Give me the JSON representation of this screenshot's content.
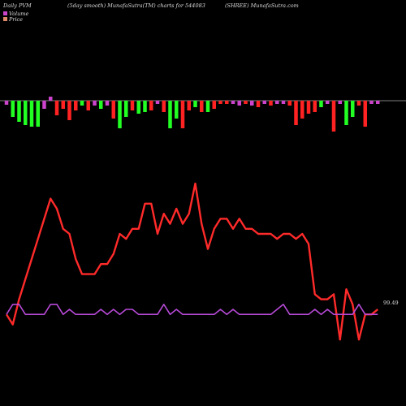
{
  "header": {
    "left": "Daily PVM",
    "center": "(5day smooth) MunafaSutra(TM) charts for 544083",
    "right": "(SHREE) MunafaSutra.com"
  },
  "legend": [
    {
      "label": "Volume",
      "color": "#cc44cc"
    },
    {
      "label": "Price",
      "color": "#e08a6a"
    }
  ],
  "end_label": "99.49",
  "colors": {
    "background": "#000000",
    "volume_up": "#ff2222",
    "volume_down": "#22ff22",
    "volume_neutral": "#cc44cc",
    "price_line": "#ff2a2a",
    "volume_line": "#b84ad8",
    "baseline": "#aaaaaa"
  },
  "chart_data": [
    {
      "type": "bar",
      "title": "",
      "series": [
        {
          "values": [
            -5,
            -20,
            -26,
            -30,
            -32,
            -32,
            -10,
            5,
            -18,
            -10,
            -24,
            -12,
            -6,
            -12,
            -6,
            -10,
            -6,
            -22,
            -34,
            -20,
            -12,
            -16,
            -14,
            -12,
            -4,
            -14,
            -34,
            -22,
            -34,
            -12,
            -8,
            -14,
            -14,
            -10,
            -4,
            -4,
            -4,
            -6,
            -4,
            -6,
            -8,
            -4,
            -6,
            -4,
            -4,
            -6,
            -30,
            -22,
            -16,
            -14,
            -8,
            -4,
            -38,
            -4,
            -30,
            -20,
            -6,
            -32,
            -4,
            -4
          ]
        }
      ],
      "bar_colors": [
        "m",
        "g",
        "g",
        "g",
        "g",
        "g",
        "m",
        "m",
        "r",
        "r",
        "r",
        "r",
        "g",
        "r",
        "m",
        "g",
        "m",
        "r",
        "g",
        "g",
        "r",
        "g",
        "g",
        "r",
        "m",
        "r",
        "g",
        "g",
        "r",
        "r",
        "g",
        "r",
        "g",
        "r",
        "r",
        "r",
        "m",
        "m",
        "r",
        "m",
        "r",
        "m",
        "r",
        "m",
        "m",
        "r",
        "r",
        "r",
        "r",
        "r",
        "g",
        "m",
        "r",
        "m",
        "g",
        "g",
        "r",
        "r",
        "m",
        "m"
      ]
    },
    {
      "type": "line",
      "title": "",
      "x": [
        0,
        1,
        2,
        3,
        4,
        5,
        6,
        7,
        8,
        9,
        10,
        11,
        12,
        13,
        14,
        15,
        16,
        17,
        18,
        19,
        20,
        21,
        22,
        23,
        24,
        25,
        26,
        27,
        28,
        29,
        30,
        31,
        32,
        33,
        34,
        35,
        36,
        37,
        38,
        39,
        40,
        41,
        42,
        43,
        44,
        45,
        46,
        47,
        48,
        49,
        50,
        51,
        52,
        53,
        54,
        55,
        56,
        57,
        58,
        59
      ],
      "series": [
        {
          "name": "Price",
          "values": [
            14,
            12,
            17,
            21,
            25,
            29,
            33,
            37,
            35,
            31,
            30,
            25,
            22,
            22,
            22,
            24,
            24,
            26,
            30,
            29,
            31,
            31,
            36,
            36,
            30,
            34,
            32,
            35,
            32,
            34,
            40,
            32,
            27,
            31,
            33,
            33,
            31,
            33,
            31,
            31,
            30,
            30,
            30,
            29,
            30,
            30,
            29,
            30,
            28,
            18,
            17,
            17,
            18,
            9,
            19,
            16,
            9,
            14,
            14,
            15
          ]
        },
        {
          "name": "Volume",
          "values": [
            14,
            16,
            16,
            14,
            14,
            14,
            14,
            16,
            16,
            14,
            15,
            14,
            14,
            14,
            14,
            15,
            14,
            15,
            14,
            15,
            15,
            14,
            14,
            14,
            14,
            16,
            14,
            15,
            14,
            14,
            14,
            14,
            14,
            14,
            15,
            14,
            15,
            14,
            14,
            14,
            14,
            14,
            14,
            15,
            16,
            14,
            14,
            14,
            14,
            15,
            14,
            15,
            14,
            14,
            14,
            14,
            16,
            14,
            14,
            14
          ]
        }
      ]
    }
  ]
}
